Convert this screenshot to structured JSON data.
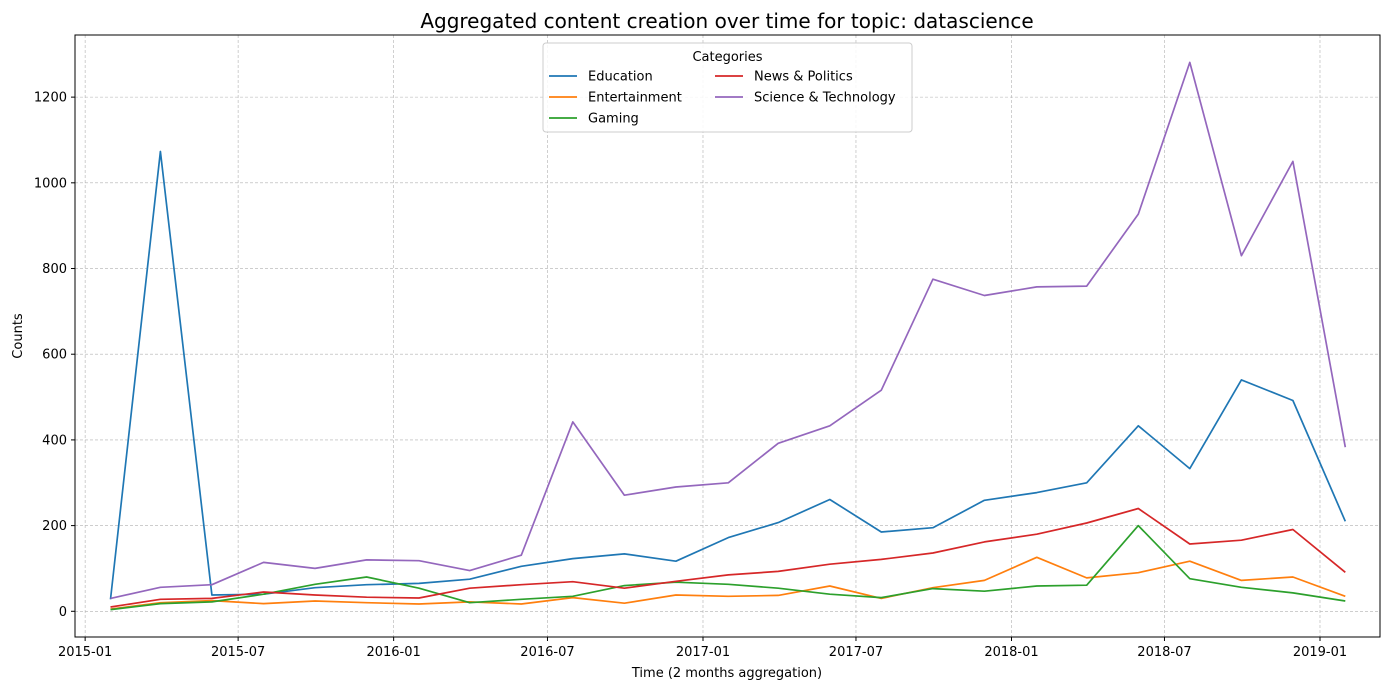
{
  "chart_data": {
    "type": "line",
    "title": "Aggregated content creation over time for topic: datascience",
    "xlabel": "Time (2 months aggregation)",
    "ylabel": "Counts",
    "x": [
      "2015-01-31",
      "2015-03-31",
      "2015-05-31",
      "2015-07-31",
      "2015-09-30",
      "2015-11-30",
      "2016-01-31",
      "2016-03-31",
      "2016-05-31",
      "2016-07-31",
      "2016-09-30",
      "2016-11-30",
      "2017-01-31",
      "2017-03-31",
      "2017-05-31",
      "2017-07-31",
      "2017-09-30",
      "2017-11-30",
      "2018-01-31",
      "2018-03-31",
      "2018-05-31",
      "2018-07-31",
      "2018-09-30",
      "2018-11-30",
      "2019-01-31"
    ],
    "xlim": [
      "2014-12-20",
      "2019-03-13"
    ],
    "ylim": [
      -60,
      1345
    ],
    "x_ticks": [
      {
        "date": "2015-01-01",
        "label": "2015-01"
      },
      {
        "date": "2015-07-01",
        "label": "2015-07"
      },
      {
        "date": "2016-01-01",
        "label": "2016-01"
      },
      {
        "date": "2016-07-01",
        "label": "2016-07"
      },
      {
        "date": "2017-01-01",
        "label": "2017-01"
      },
      {
        "date": "2017-07-01",
        "label": "2017-07"
      },
      {
        "date": "2018-01-01",
        "label": "2018-01"
      },
      {
        "date": "2018-07-01",
        "label": "2018-07"
      },
      {
        "date": "2019-01-01",
        "label": "2019-01"
      }
    ],
    "y_ticks": [
      0,
      200,
      400,
      600,
      800,
      1000,
      1200
    ],
    "grid": true,
    "legend": {
      "title": "Categories",
      "position": "upper-center",
      "columns": 2
    },
    "series": [
      {
        "name": "Education",
        "color": "#1f77b4",
        "values": [
          28,
          1073,
          38,
          40,
          55,
          62,
          65,
          75,
          105,
          123,
          134,
          117,
          172,
          207,
          261,
          185,
          195,
          259,
          277,
          300,
          433,
          333,
          540,
          492,
          210
        ]
      },
      {
        "name": "Entertainment",
        "color": "#ff7f0e",
        "values": [
          5,
          20,
          25,
          18,
          24,
          20,
          17,
          22,
          17,
          32,
          19,
          38,
          35,
          37,
          59,
          30,
          55,
          72,
          126,
          78,
          90,
          117,
          72,
          80,
          35
        ]
      },
      {
        "name": "Gaming",
        "color": "#2ca02c",
        "values": [
          4,
          18,
          22,
          40,
          63,
          80,
          54,
          20,
          28,
          35,
          60,
          68,
          63,
          54,
          40,
          32,
          53,
          47,
          59,
          61,
          200,
          76,
          56,
          43,
          24
        ]
      },
      {
        "name": "News & Politics",
        "color": "#d62728",
        "values": [
          10,
          28,
          30,
          45,
          38,
          33,
          31,
          54,
          62,
          69,
          54,
          70,
          85,
          93,
          110,
          121,
          136,
          162,
          180,
          206,
          240,
          157,
          166,
          191,
          91
        ]
      },
      {
        "name": "Science & Technology",
        "color": "#9467bd",
        "values": [
          30,
          56,
          62,
          114,
          100,
          120,
          118,
          95,
          131,
          442,
          271,
          290,
          300,
          392,
          433,
          516,
          775,
          737,
          757,
          759,
          927,
          1281,
          830,
          1050,
          383
        ]
      }
    ]
  }
}
